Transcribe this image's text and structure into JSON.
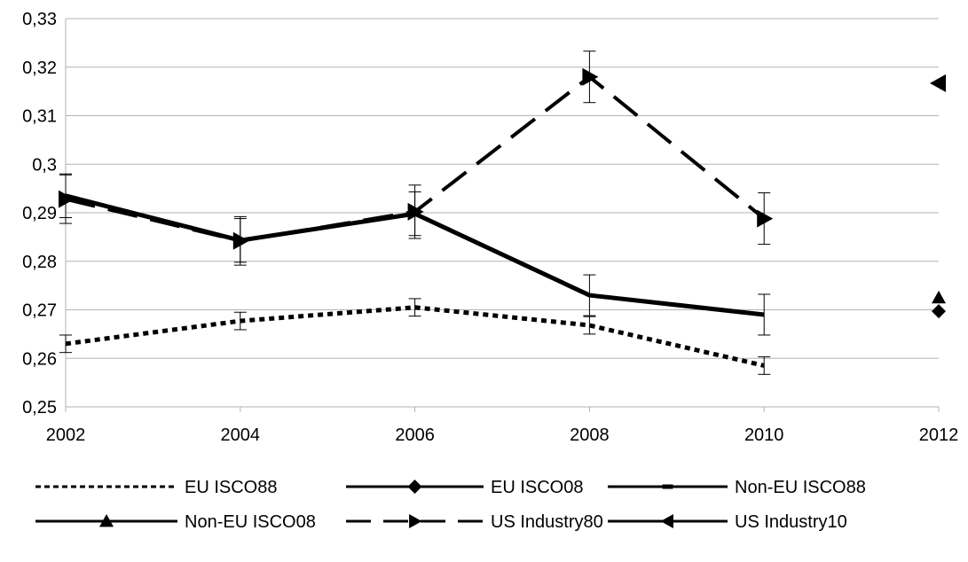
{
  "chart_data": {
    "type": "line",
    "x": [
      2002,
      2004,
      2006,
      2008,
      2010,
      2012
    ],
    "xlim": [
      2002,
      2012
    ],
    "ylim": [
      0.25,
      0.33
    ],
    "x_ticks": [
      "2002",
      "2004",
      "2006",
      "2008",
      "2010",
      "2012"
    ],
    "y_ticks": [
      "0,25",
      "0,26",
      "0,27",
      "0,28",
      "0,29",
      "0,3",
      "0,31",
      "0,32",
      "0,33"
    ],
    "grid": "horizontal",
    "legend_position": "bottom",
    "series": [
      {
        "name": "EU ISCO88",
        "style": "dotted",
        "marker": "none",
        "values": [
          0.263,
          0.2677,
          0.2705,
          0.2668,
          0.2585,
          null
        ],
        "errors": [
          0.0018,
          0.0018,
          0.0018,
          0.0018,
          0.0018,
          null
        ]
      },
      {
        "name": "EU ISCO08",
        "style": "solid",
        "marker": "diamond",
        "values": [
          null,
          null,
          null,
          null,
          null,
          0.2697
        ],
        "errors": [
          null,
          null,
          null,
          null,
          null,
          null
        ]
      },
      {
        "name": "Non-EU ISCO88",
        "style": "solid",
        "marker": "dash",
        "values": [
          0.2935,
          0.2843,
          0.2898,
          0.273,
          0.269,
          null
        ],
        "errors": [
          0.0045,
          0.0045,
          0.0045,
          0.0042,
          0.0042,
          null
        ]
      },
      {
        "name": "Non-EU ISCO08",
        "style": "solid",
        "marker": "triangle-up",
        "values": [
          null,
          null,
          null,
          null,
          null,
          0.2725
        ],
        "errors": [
          null,
          null,
          null,
          null,
          null,
          null
        ]
      },
      {
        "name": "US Industry80",
        "style": "dashed",
        "marker": "triangle-right",
        "values": [
          0.2928,
          0.2842,
          0.2902,
          0.318,
          0.2888,
          null
        ],
        "errors": [
          0.005,
          0.005,
          0.0055,
          0.0053,
          0.0053,
          null
        ]
      },
      {
        "name": "US Industry10",
        "style": "solid",
        "marker": "triangle-left",
        "values": [
          null,
          null,
          null,
          null,
          null,
          0.3167
        ],
        "errors": [
          null,
          null,
          null,
          null,
          null,
          null
        ]
      }
    ]
  }
}
